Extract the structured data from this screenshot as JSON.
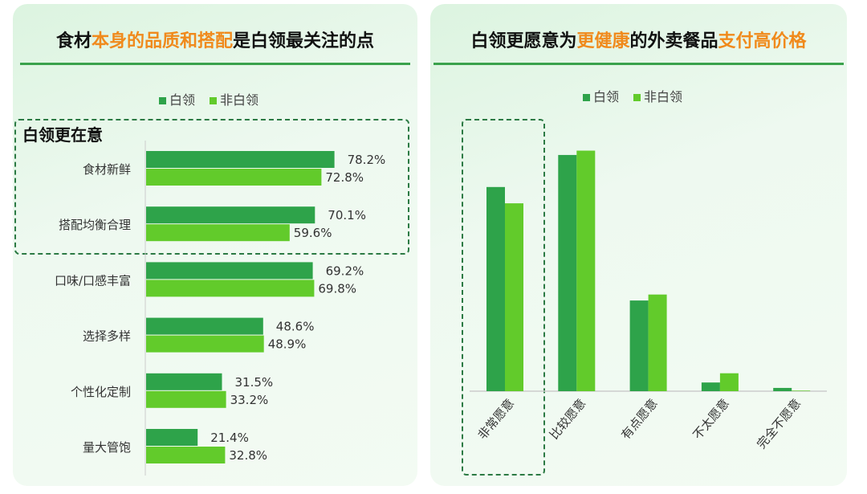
{
  "colors": {
    "white_collar": "#2ea34a",
    "non_white_collar": "#62cb2b",
    "accent": "#f08a1c"
  },
  "left": {
    "title_parts": [
      "食材",
      "本身的品质和搭配",
      "是白领最关注的点"
    ],
    "highlight_label": "白领更在意"
  },
  "right": {
    "title_parts": [
      "白领更愿意为",
      "更健康",
      "的外卖餐品",
      "支付高价格"
    ]
  },
  "legend": [
    "白领",
    "非白领"
  ],
  "chart_data": [
    {
      "type": "bar",
      "orientation": "horizontal",
      "categories": [
        "食材新鲜",
        "搭配均衡合理",
        "口味/口感丰富",
        "选择多样",
        "个性化定制",
        "量大管饱"
      ],
      "series": [
        {
          "name": "白领",
          "values": [
            78.2,
            70.1,
            69.2,
            48.6,
            31.5,
            21.4
          ]
        },
        {
          "name": "非白领",
          "values": [
            72.8,
            59.6,
            69.8,
            48.9,
            33.2,
            32.8
          ]
        }
      ],
      "data_labels": [
        [
          "78.2%",
          "70.1%",
          "69.2%",
          "48.6%",
          "31.5%",
          "21.4%"
        ],
        [
          "72.8%",
          "59.6%",
          "69.8%",
          "48.9%",
          "33.2%",
          "32.8%"
        ]
      ],
      "legend": "top"
    },
    {
      "type": "bar",
      "orientation": "vertical",
      "categories": [
        "非常愿意",
        "比较愿意",
        "有点愿意",
        "不太愿意",
        "完全不愿意"
      ],
      "series": [
        {
          "name": "白领",
          "values": [
            37.6,
            43.5,
            16.7,
            1.6,
            0.6
          ]
        },
        {
          "name": "非白领",
          "values": [
            34.6,
            44.3,
            17.8,
            3.3,
            0.1
          ]
        }
      ],
      "legend": "top",
      "grid": false
    }
  ]
}
